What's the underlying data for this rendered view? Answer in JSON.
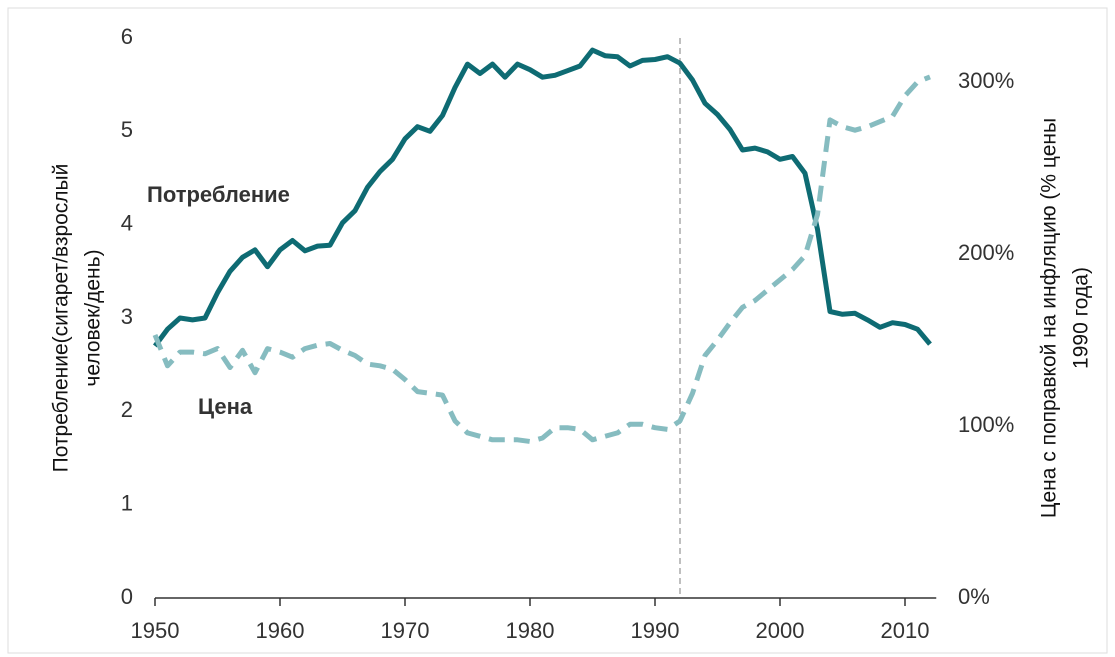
{
  "chart_data": {
    "type": "line",
    "y_label": [
      "Потребление(сигарет/взрослый",
      "человек/день)"
    ],
    "y2_label": [
      "Цена с поправкой на инфляцию (% цены",
      "1990 года)"
    ],
    "annotations": [
      {
        "text": "Потребление",
        "color": "#0e6b73"
      },
      {
        "text": "Цена",
        "color": "#86bcc0"
      }
    ],
    "vline": 1992,
    "x": [
      1950,
      1951,
      1952,
      1953,
      1954,
      1955,
      1956,
      1957,
      1958,
      1959,
      1960,
      1961,
      1962,
      1963,
      1964,
      1965,
      1966,
      1967,
      1968,
      1969,
      1970,
      1971,
      1972,
      1973,
      1974,
      1975,
      1976,
      1977,
      1978,
      1979,
      1980,
      1981,
      1982,
      1983,
      1984,
      1985,
      1986,
      1987,
      1988,
      1989,
      1990,
      1991,
      1992,
      1993,
      1994,
      1995,
      1996,
      1997,
      1998,
      1999,
      2000,
      2001,
      2002,
      2003,
      2004,
      2005,
      2006,
      2007,
      2008,
      2009,
      2010,
      2011,
      2012
    ],
    "xlim": [
      1950,
      2012.5
    ],
    "xticks": [
      1950,
      1960,
      1970,
      1980,
      1990,
      2000,
      2010
    ],
    "ylim": [
      0,
      6
    ],
    "yticks": [
      0,
      1,
      2,
      3,
      4,
      5,
      6
    ],
    "y2lim": [
      0,
      325.6
    ],
    "y2ticks": [
      {
        "value": 0,
        "label": "0%"
      },
      {
        "value": 100,
        "label": "100%"
      },
      {
        "value": 200,
        "label": "200%"
      },
      {
        "value": 300,
        "label": "300%"
      }
    ],
    "series": [
      {
        "name": "Потребление",
        "color": "#0e6b73",
        "dashed": false,
        "values": [
          2.7,
          2.88,
          3.0,
          2.98,
          3.0,
          3.27,
          3.5,
          3.65,
          3.73,
          3.55,
          3.73,
          3.83,
          3.72,
          3.77,
          3.78,
          4.02,
          4.15,
          4.4,
          4.57,
          4.7,
          4.92,
          5.05,
          5.0,
          5.17,
          5.47,
          5.72,
          5.62,
          5.72,
          5.58,
          5.72,
          5.66,
          5.58,
          5.6,
          5.65,
          5.7,
          5.87,
          5.81,
          5.8,
          5.7,
          5.76,
          5.77,
          5.8,
          5.73,
          5.55,
          5.3,
          5.18,
          5.02,
          4.8,
          4.82,
          4.78,
          4.7,
          4.73,
          4.55,
          3.95,
          3.07,
          3.04,
          3.05,
          2.98,
          2.9,
          2.95,
          2.93,
          2.88,
          2.72
        ]
      },
      {
        "name": "Цена",
        "color": "#86bcc0",
        "dashed": true,
        "axis": "y2",
        "values": [
          153,
          135,
          143,
          143,
          142,
          145,
          134,
          144,
          131,
          145,
          143,
          140,
          145,
          147,
          148,
          144,
          141,
          136,
          135,
          133,
          127,
          120,
          119,
          118,
          103,
          96,
          94,
          92,
          92,
          92,
          91,
          93,
          99,
          99,
          98,
          92,
          94,
          96,
          101,
          101,
          99,
          98,
          103,
          119,
          141,
          150,
          160,
          169,
          173,
          179,
          185,
          191,
          199,
          223,
          278,
          274,
          272,
          274,
          277,
          280,
          292,
          300,
          303
        ]
      }
    ]
  }
}
